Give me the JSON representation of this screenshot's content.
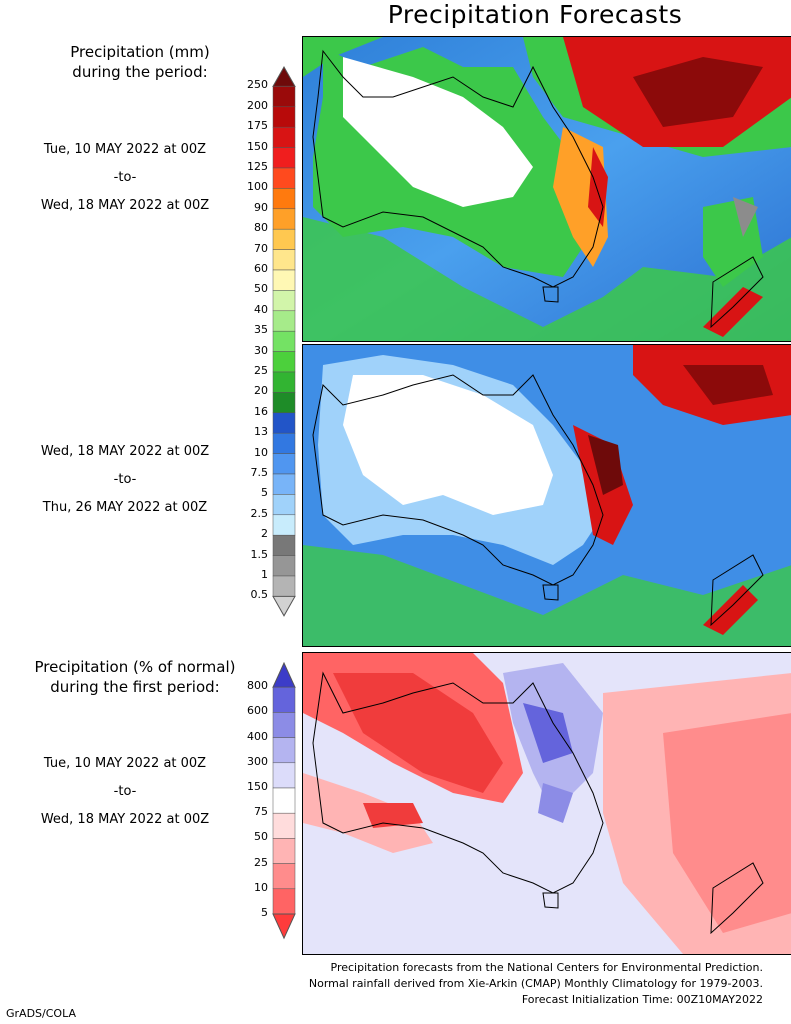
{
  "title": "Precipitation Forecasts",
  "amount_heading": [
    "Precipitation (mm)",
    "during the period:"
  ],
  "anomaly_heading": [
    "Precipitation (% of normal)",
    "during the first period:"
  ],
  "periods": [
    {
      "start": "Tue, 10 MAY 2022 at 00Z",
      "sep": "-to-",
      "end": "Wed, 18 MAY 2022 at 00Z"
    },
    {
      "start": "Wed, 18 MAY 2022 at 00Z",
      "sep": "-to-",
      "end": "Thu, 26 MAY 2022 at 00Z"
    },
    {
      "start": "Tue, 10 MAY 2022 at 00Z",
      "sep": "-to-",
      "end": "Wed, 18 MAY 2022 at 00Z"
    }
  ],
  "amount_scale": {
    "labels": [
      "250",
      "200",
      "175",
      "150",
      "125",
      "100",
      "90",
      "80",
      "70",
      "60",
      "50",
      "40",
      "35",
      "30",
      "25",
      "20",
      "16",
      "13",
      "10",
      "7.5",
      "5",
      "2.5",
      "2",
      "1.5",
      "1",
      "0.5"
    ],
    "colors": [
      "#6e0a0a",
      "#9a0a0a",
      "#b80a0a",
      "#d81414",
      "#f01e1e",
      "#ff4a1e",
      "#ff7a0e",
      "#ffa028",
      "#ffc850",
      "#ffe68c",
      "#fff8b4",
      "#d2f5aa",
      "#a6eb8a",
      "#74e264",
      "#4cd03c",
      "#32b432",
      "#1e8c28",
      "#2255c8",
      "#3278e1",
      "#5096f0",
      "#78b4f8",
      "#a0d2fa",
      "#c8ecfc",
      "#787878",
      "#969696",
      "#b4b4b4",
      "#d2d2d2"
    ]
  },
  "percent_scale": {
    "labels": [
      "800",
      "600",
      "400",
      "300",
      "150",
      "75",
      "50",
      "25",
      "10",
      "5"
    ],
    "colors": [
      "#3c3cc8",
      "#6464dc",
      "#8c8ce6",
      "#b4b4f0",
      "#dcdcfa",
      "#ffffff",
      "#ffdcdc",
      "#ffb4b4",
      "#ff8c8c",
      "#ff6464",
      "#ff3c3c"
    ]
  },
  "maps": {
    "panel1": {
      "sea": "#3f8ee6",
      "land_dry": "#ffffff",
      "wet": "#3cc84a",
      "heavy": "#c81414"
    },
    "panel2": {
      "sea": "#3f8ee6",
      "land_dry": "#ffffff",
      "wet": "#3cc84a",
      "heavy": "#c81414"
    },
    "panel3": {
      "sea": "#e4e4fa",
      "dry": "#f05050",
      "wet": "#6464dc"
    }
  },
  "footer": [
    "Precipitation forecasts from the National Centers for Environmental Prediction.",
    "Normal rainfall derived from Xie-Arkin (CMAP) Monthly Climatology for 1979-2003.",
    "Forecast Initialization Time: 00Z10MAY2022"
  ],
  "credit": "GrADS/COLA"
}
